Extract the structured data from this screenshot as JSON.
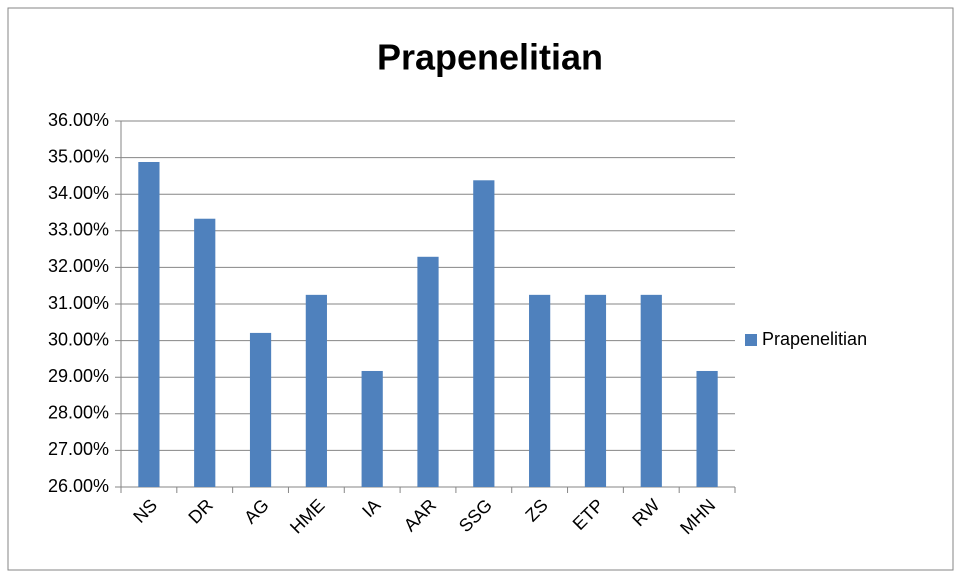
{
  "chart_data": {
    "type": "bar",
    "title": "Prapenelitian",
    "categories": [
      "NS",
      "DR",
      "AG",
      "HME",
      "IA",
      "AAR",
      "SSG",
      "ZS",
      "ETP",
      "RW",
      "MHN"
    ],
    "series": [
      {
        "name": "Prapenelitian",
        "color": "#4f81bd",
        "values": [
          34.88,
          33.33,
          30.21,
          31.25,
          29.17,
          32.29,
          34.38,
          31.25,
          31.25,
          31.25,
          29.17
        ]
      }
    ],
    "ylim": [
      26,
      36
    ],
    "yticks": [
      {
        "value": 26,
        "label": "26.00%"
      },
      {
        "value": 27,
        "label": "27.00%"
      },
      {
        "value": 28,
        "label": "28.00%"
      },
      {
        "value": 29,
        "label": "29.00%"
      },
      {
        "value": 30,
        "label": "30.00%"
      },
      {
        "value": 31,
        "label": "31.00%"
      },
      {
        "value": 32,
        "label": "32.00%"
      },
      {
        "value": 33,
        "label": "33.00%"
      },
      {
        "value": 34,
        "label": "34.00%"
      },
      {
        "value": 35,
        "label": "35.00%"
      },
      {
        "value": 36,
        "label": "36.00%"
      }
    ],
    "grid": true,
    "legend": "right"
  }
}
